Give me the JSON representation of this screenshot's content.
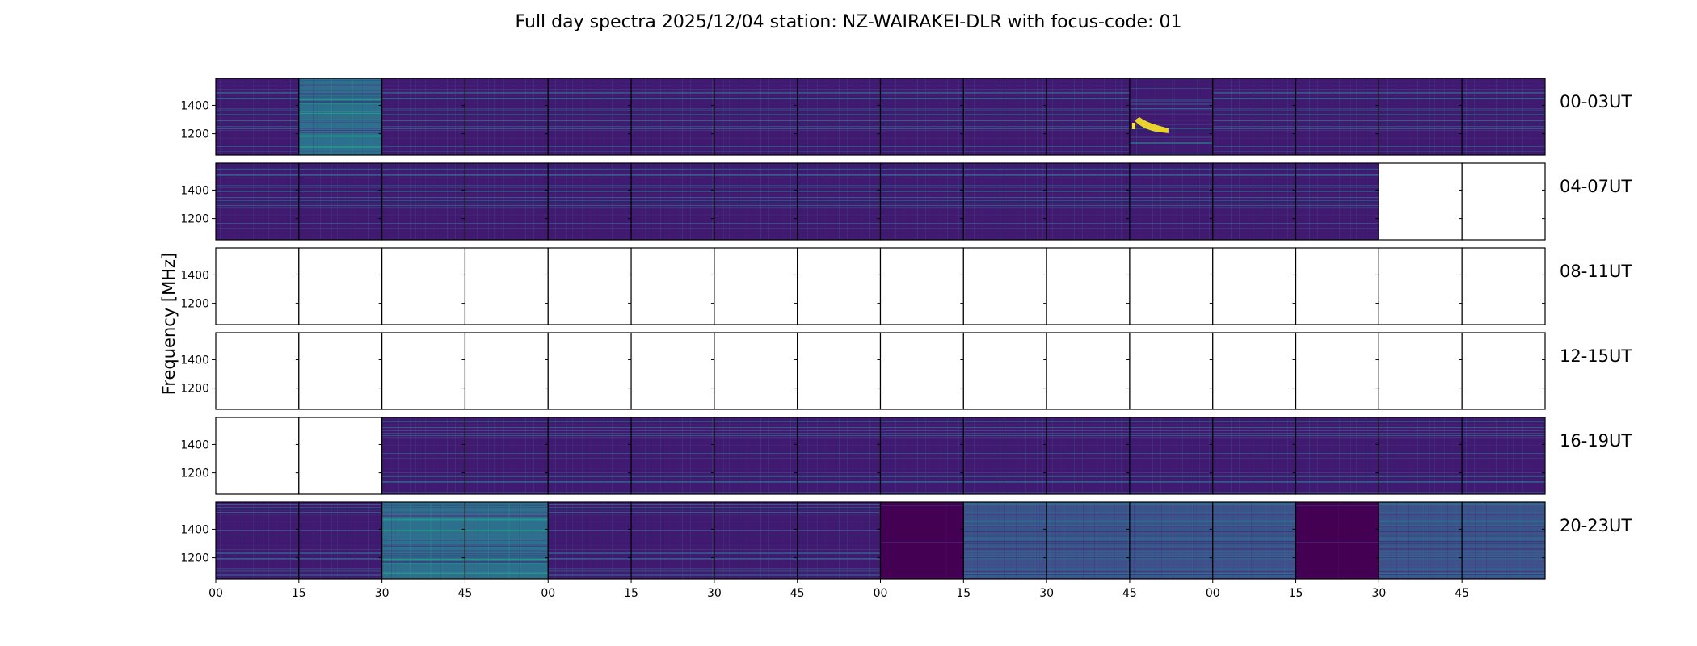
{
  "chart_data": {
    "type": "heatmap",
    "title": "Full day spectra 2025/12/04 station: NZ-WAIRAKEI-DLR with focus-code: 01",
    "ylabel": "Frequency [MHz]",
    "xlabel": "",
    "y_range_mhz": [
      1050,
      1590
    ],
    "y_ticks": [
      "1400",
      "1200"
    ],
    "y_tick_values": [
      1400,
      1200
    ],
    "x_ticks": [
      "00",
      "15",
      "30",
      "45",
      "00",
      "15",
      "30",
      "45",
      "00",
      "15",
      "30",
      "45",
      "00",
      "15",
      "30",
      "45"
    ],
    "x_ticks_minutes": [
      0,
      15,
      30,
      45
    ],
    "tiles_per_row": 16,
    "tile_duration_min": 15,
    "rows": [
      {
        "label": "00-03UT",
        "tiles": [
          "dark",
          "teal",
          "dark",
          "dark",
          "dark",
          "dark",
          "dark",
          "dark",
          "dark",
          "dark",
          "dark",
          "burst",
          "dark",
          "dark",
          "dark",
          "dark"
        ]
      },
      {
        "label": "04-07UT",
        "tiles": [
          "dark",
          "dark",
          "dark",
          "dark",
          "dark",
          "dark",
          "dark",
          "dark",
          "dark",
          "dark",
          "dark",
          "dark",
          "dark",
          "dark",
          "empty",
          "empty"
        ]
      },
      {
        "label": "08-11UT",
        "tiles": [
          "empty",
          "empty",
          "empty",
          "empty",
          "empty",
          "empty",
          "empty",
          "empty",
          "empty",
          "empty",
          "empty",
          "empty",
          "empty",
          "empty",
          "empty",
          "empty"
        ]
      },
      {
        "label": "12-15UT",
        "tiles": [
          "empty",
          "empty",
          "empty",
          "empty",
          "empty",
          "empty",
          "empty",
          "empty",
          "empty",
          "empty",
          "empty",
          "empty",
          "empty",
          "empty",
          "empty",
          "empty"
        ]
      },
      {
        "label": "16-19UT",
        "tiles": [
          "empty",
          "empty",
          "dark",
          "dark",
          "dark",
          "dark",
          "dark",
          "dark",
          "dark",
          "dark",
          "dark",
          "dark",
          "dark",
          "dark",
          "dark",
          "dark"
        ]
      },
      {
        "label": "20-23UT",
        "tiles": [
          "dark",
          "dark",
          "teal",
          "teal",
          "dark",
          "dark",
          "dark",
          "dark",
          "solid",
          "blue",
          "blue",
          "blue",
          "blue",
          "solid",
          "blue",
          "blue"
        ]
      }
    ],
    "legend": "none",
    "grid": false
  },
  "colors": {
    "dark": "#401a70",
    "teal": "#2c708e",
    "blue": "#3b528b",
    "solid": "#440154",
    "highlight": "#21918c",
    "burst": "#fde725",
    "empty": "#ffffff"
  }
}
